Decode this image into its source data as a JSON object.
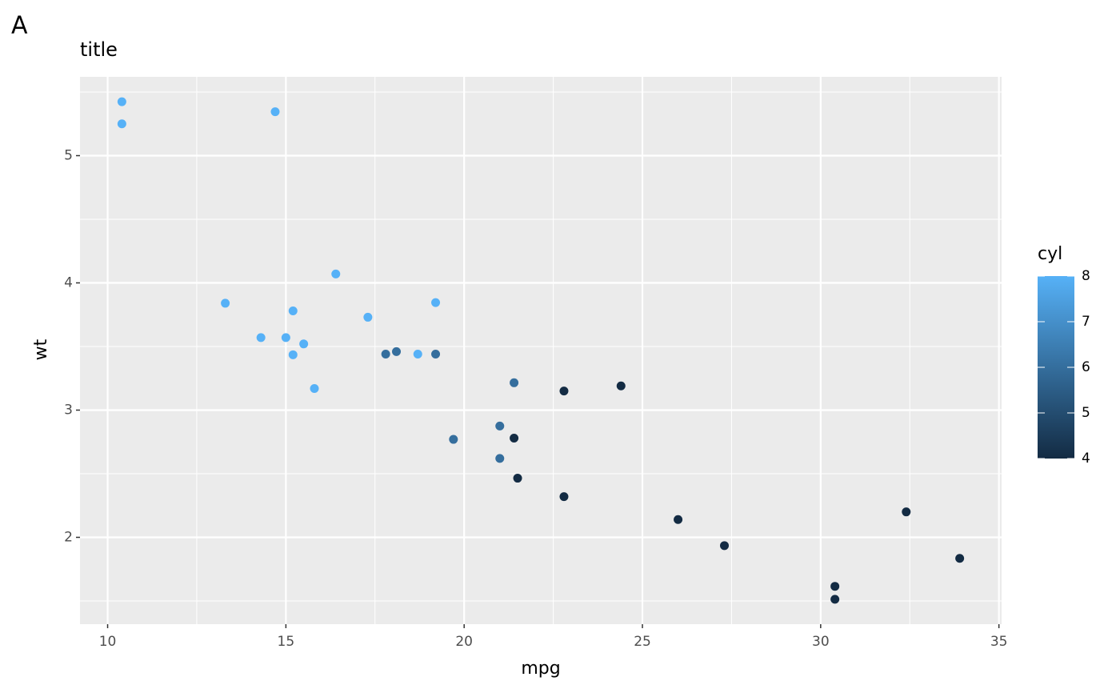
{
  "chart_data": {
    "type": "scatter",
    "tag": "A",
    "title": "title",
    "x_label": "mpg",
    "y_label": "wt",
    "x": [
      21.0,
      21.0,
      22.8,
      21.4,
      18.7,
      18.1,
      14.3,
      24.4,
      22.8,
      19.2,
      17.8,
      16.4,
      17.3,
      15.2,
      10.4,
      10.4,
      14.7,
      32.4,
      30.4,
      33.9,
      21.5,
      15.5,
      15.2,
      13.3,
      19.2,
      27.3,
      26.0,
      30.4,
      15.8,
      19.7,
      15.0,
      21.4
    ],
    "y": [
      2.62,
      2.875,
      2.32,
      3.215,
      3.44,
      3.46,
      3.57,
      3.19,
      3.15,
      3.44,
      3.44,
      4.07,
      3.73,
      3.78,
      5.25,
      5.424,
      5.345,
      2.2,
      1.615,
      1.835,
      2.465,
      3.52,
      3.435,
      3.84,
      3.845,
      1.935,
      2.14,
      1.513,
      3.17,
      2.77,
      3.57,
      2.78
    ],
    "color_values": [
      6,
      6,
      4,
      6,
      8,
      6,
      8,
      4,
      4,
      6,
      6,
      8,
      8,
      8,
      8,
      8,
      8,
      4,
      4,
      4,
      4,
      8,
      8,
      8,
      8,
      4,
      4,
      4,
      8,
      6,
      8,
      4
    ],
    "color_label": "cyl",
    "color_low": "#132B43",
    "color_high": "#56B1F7",
    "color_limits": [
      4,
      8
    ],
    "color_ticks": [
      4,
      5,
      6,
      7,
      8
    ],
    "xlim": [
      9.225,
      35.075
    ],
    "ylim": [
      1.31745,
      5.61955
    ],
    "xticks": [
      10,
      15,
      20,
      25,
      30,
      35
    ],
    "yticks": [
      2,
      3,
      4,
      5
    ],
    "x_minor_ticks": [
      12.5,
      17.5,
      22.5,
      27.5,
      32.5
    ],
    "y_minor_ticks": [
      1.5,
      2.5,
      3.5,
      4.5,
      5.5
    ],
    "panel_background": "#EBEBEB",
    "grid": true
  }
}
